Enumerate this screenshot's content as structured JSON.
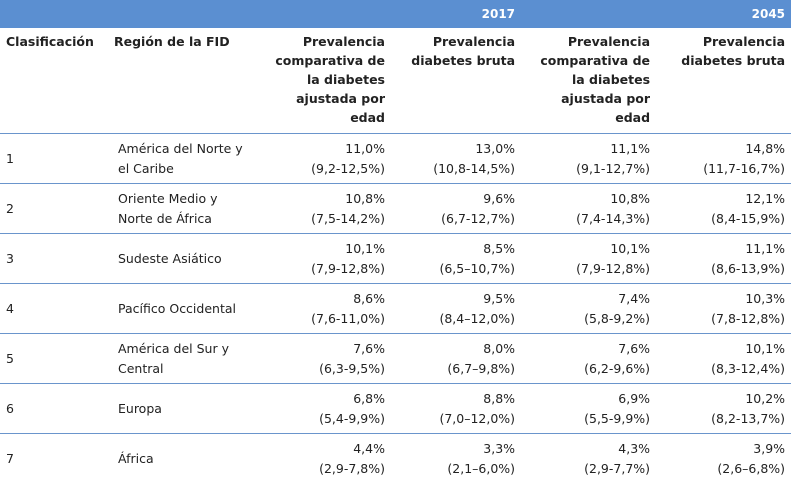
{
  "years": {
    "y2017": "2017",
    "y2045": "2045"
  },
  "headers": {
    "rank": "Clasificación",
    "region": "Región de la FID",
    "comp_2017": "Prevalencia comparativa de la diabetes ajustada por edad",
    "raw_2017": "Prevalencia diabetes bruta",
    "comp_2045": "Prevalencia comparativa de la diabetes ajustada por edad",
    "raw_2045": "Prevalencia diabetes bruta"
  },
  "rows": [
    {
      "rank": "1",
      "region": "América del Norte y el Caribe",
      "comp2017": "11,0%",
      "comp2017ci": "(9,2-12,5%)",
      "raw2017": "13,0%",
      "raw2017ci": "(10,8-14,5%)",
      "comp2045": "11,1%",
      "comp2045ci": "(9,1-12,7%)",
      "raw2045": "14,8%",
      "raw2045ci": "(11,7-16,7%)"
    },
    {
      "rank": "2",
      "region": "Oriente Medio y Norte de África",
      "comp2017": "10,8%",
      "comp2017ci": "(7,5-14,2%)",
      "raw2017": "9,6%",
      "raw2017ci": "(6,7-12,7%)",
      "comp2045": "10,8%",
      "comp2045ci": "(7,4-14,3%)",
      "raw2045": "12,1%",
      "raw2045ci": "(8,4-15,9%)"
    },
    {
      "rank": "3",
      "region": "Sudeste Asiático",
      "comp2017": "10,1%",
      "comp2017ci": "(7,9-12,8%)",
      "raw2017": "8,5%",
      "raw2017ci": "(6,5–10,7%)",
      "comp2045": "10,1%",
      "comp2045ci": "(7,9-12,8%)",
      "raw2045": "11,1%",
      "raw2045ci": "(8,6-13,9%)"
    },
    {
      "rank": "4",
      "region": "Pacífico Occidental",
      "comp2017": "8,6%",
      "comp2017ci": "(7,6-11,0%)",
      "raw2017": "9,5%",
      "raw2017ci": "(8,4–12,0%)",
      "comp2045": "7,4%",
      "comp2045ci": "(5,8-9,2%)",
      "raw2045": "10,3%",
      "raw2045ci": "(7,8-12,8%)"
    },
    {
      "rank": "5",
      "region": "América del Sur y Central",
      "comp2017": "7,6%",
      "comp2017ci": "(6,3-9,5%)",
      "raw2017": "8,0%",
      "raw2017ci": "(6,7–9,8%)",
      "comp2045": "7,6%",
      "comp2045ci": "(6,2-9,6%)",
      "raw2045": "10,1%",
      "raw2045ci": "(8,3-12,4%)"
    },
    {
      "rank": "6",
      "region": "Europa",
      "comp2017": "6,8%",
      "comp2017ci": "(5,4-9,9%)",
      "raw2017": "8,8%",
      "raw2017ci": "(7,0–12,0%)",
      "comp2045": "6,9%",
      "comp2045ci": "(5,5-9,9%)",
      "raw2045": "10,2%",
      "raw2045ci": "(8,2-13,7%)"
    },
    {
      "rank": "7",
      "region": "África",
      "comp2017": "4,4%",
      "comp2017ci": "(2,9-7,8%)",
      "raw2017": "3,3%",
      "raw2017ci": "(2,1–6,0%)",
      "comp2045": "4,3%",
      "comp2045ci": "(2,9-7,7%)",
      "raw2045": "3,9%",
      "raw2045ci": "(2,6–6,8%)"
    }
  ]
}
